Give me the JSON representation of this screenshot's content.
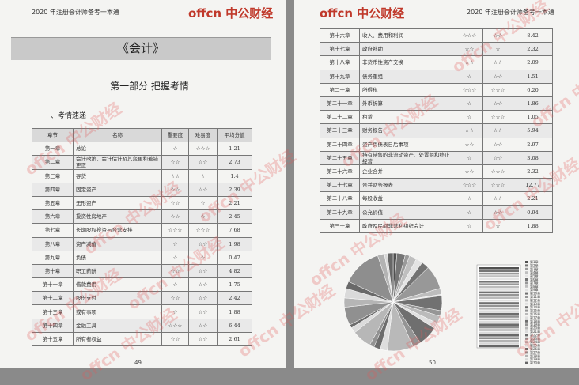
{
  "left_page": {
    "header": "2020 年注册会计师备考一本通",
    "logo": "offcn 中公财经",
    "book_title": "《会计》",
    "part_title": "第一部分 把握考情",
    "section_title": "一、考情速递",
    "page_number": "49"
  },
  "right_page": {
    "header": "2020 年注册会计师备考一本通",
    "logo": "offcn 中公财经",
    "page_number": "50"
  },
  "watermark": "offcn 中公财经",
  "left_table": {
    "header": [
      "章节",
      "名称",
      "重要度",
      "难易度",
      "平均分值"
    ],
    "rows": [
      [
        "第一章",
        "总论",
        "☆",
        "☆☆☆",
        "1.21"
      ],
      [
        "第二章",
        "会计政策、会计估计及其变更和差错更正",
        "☆☆",
        "☆☆",
        "2.73"
      ],
      [
        "第三章",
        "存货",
        "☆☆",
        "☆",
        "1.4"
      ],
      [
        "第四章",
        "固定资产",
        "☆☆",
        "☆☆",
        "2.39"
      ],
      [
        "第五章",
        "无形资产",
        "☆☆",
        "☆",
        "2.21"
      ],
      [
        "第六章",
        "投资性房地产",
        "☆☆",
        "☆",
        "2.45"
      ],
      [
        "第七章",
        "长期股权投资与合营安排",
        "☆☆☆",
        "☆☆☆",
        "7.68"
      ],
      [
        "第八章",
        "资产减值",
        "☆",
        "☆☆",
        "1.98"
      ],
      [
        "第九章",
        "负债",
        "☆",
        "☆",
        "0.47"
      ],
      [
        "第十章",
        "职工薪酬",
        "☆☆",
        "☆☆",
        "4.82"
      ],
      [
        "第十一章",
        "借款费用",
        "☆",
        "☆☆",
        "1.75"
      ],
      [
        "第十二章",
        "股份支付",
        "☆☆",
        "☆☆",
        "2.42"
      ],
      [
        "第十三章",
        "或有事项",
        "☆",
        "☆☆",
        "1.88"
      ],
      [
        "第十四章",
        "金融工具",
        "☆☆☆",
        "☆☆",
        "6.44"
      ],
      [
        "第十五章",
        "所有者权益",
        "☆☆",
        "☆☆",
        "2.61"
      ]
    ]
  },
  "right_table": {
    "rows": [
      [
        "第十六章",
        "收入、费用和利润",
        "☆☆☆",
        "☆☆",
        "8.42"
      ],
      [
        "第十七章",
        "政府补助",
        "☆☆",
        "☆",
        "2.32"
      ],
      [
        "第十八章",
        "非货币性资产交换",
        "☆☆",
        "☆☆",
        "2.09"
      ],
      [
        "第十九章",
        "债务重组",
        "☆",
        "☆☆",
        "1.51"
      ],
      [
        "第二十章",
        "所得税",
        "☆☆☆",
        "☆☆☆",
        "6.20"
      ],
      [
        "第二十一章",
        "外币折算",
        "☆",
        "☆☆",
        "1.86"
      ],
      [
        "第二十二章",
        "租赁",
        "☆",
        "☆☆☆",
        "1.05"
      ],
      [
        "第二十三章",
        "财务报告",
        "☆☆",
        "☆☆",
        "5.94"
      ],
      [
        "第二十四章",
        "资产负债表日后事项",
        "☆☆",
        "☆☆",
        "2.97"
      ],
      [
        "第二十五章",
        "持有待售的非流动资产、处置组和终止经营",
        "☆",
        "☆☆",
        "3.08"
      ],
      [
        "第二十六章",
        "企业合并",
        "☆☆",
        "☆☆☆",
        "2.32"
      ],
      [
        "第二十七章",
        "合并财务报表",
        "☆☆☆",
        "☆☆☆",
        "12.77"
      ],
      [
        "第二十八章",
        "每股收益",
        "☆",
        "☆☆",
        "2.21"
      ],
      [
        "第二十九章",
        "公允价值",
        "☆",
        "☆☆",
        "0.94"
      ],
      [
        "第三十章",
        "政府及民间非营利组织会计",
        "☆",
        "☆",
        "1.88"
      ]
    ]
  },
  "pie_legend": [
    "第1章",
    "第2章",
    "第3章",
    "第4章",
    "第5章",
    "第6章",
    "第7章",
    "第8章",
    "第9章",
    "第10章",
    "第11章",
    "第12章",
    "第13章",
    "第14章",
    "第15章",
    "第16章",
    "第17章",
    "第18章",
    "第19章",
    "第20章",
    "第21章",
    "第22章",
    "第23章",
    "第24章",
    "第25章",
    "第26章",
    "第27章",
    "第28章",
    "第29章",
    "第30章"
  ]
}
